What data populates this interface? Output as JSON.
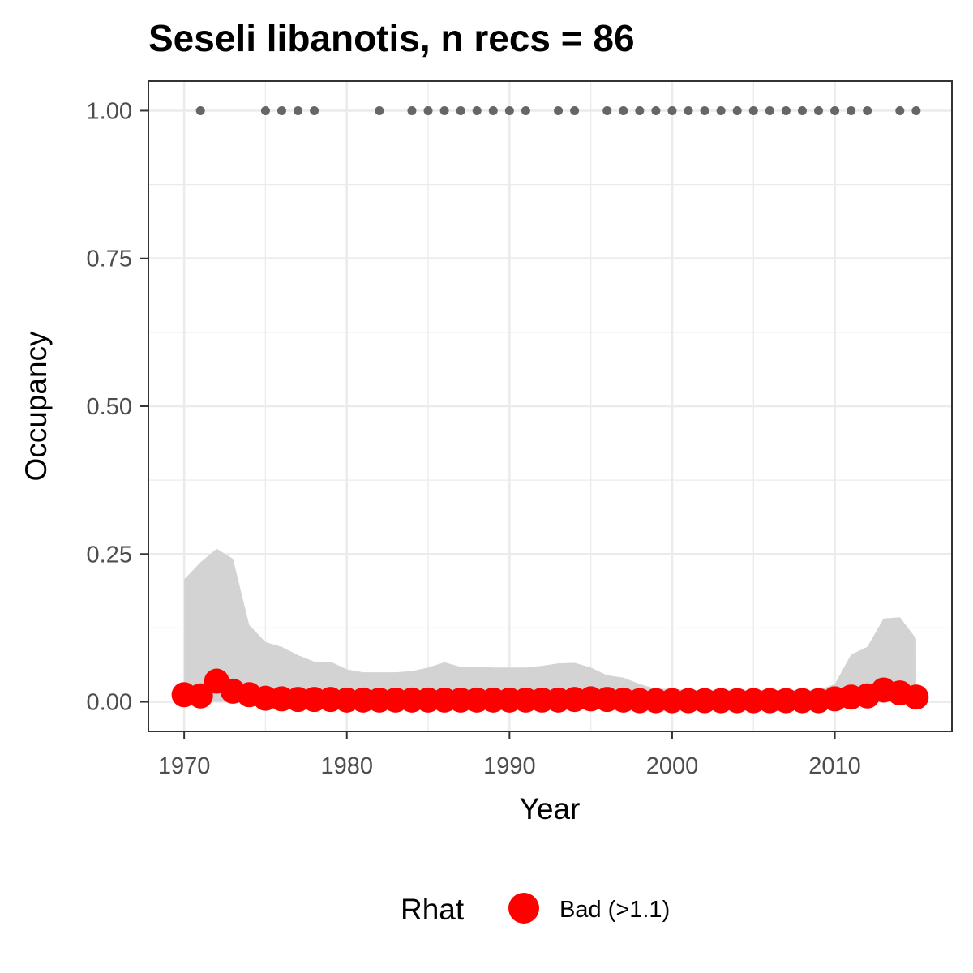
{
  "chart_data": {
    "type": "line",
    "title": "Seseli libanotis, n recs = 86",
    "xlabel": "Year",
    "ylabel": "Occupancy",
    "xlim": [
      1967.8,
      2017.2
    ],
    "ylim": [
      -0.05,
      1.05
    ],
    "xticks": [
      1970,
      1980,
      1990,
      2000,
      2010
    ],
    "yticks": [
      0.0,
      0.25,
      0.5,
      0.75,
      1.0
    ],
    "ytick_labels": [
      "0.00",
      "0.25",
      "0.50",
      "0.75",
      "1.00"
    ],
    "grid": true,
    "legend": {
      "title": "Rhat",
      "placement": "bottom",
      "entries": [
        {
          "label": "Bad (>1.1)",
          "color": "#ff0000"
        }
      ]
    },
    "colors": {
      "mean": "#ff0000",
      "ribbon": "#d3d3d3",
      "records": "#666666",
      "panel_border": "#333333",
      "grid": "#ebebeb"
    },
    "series": [
      {
        "name": "Bad (>1.1)",
        "kind": "mean",
        "x": [
          1970,
          1971,
          1972,
          1973,
          1974,
          1975,
          1976,
          1977,
          1978,
          1979,
          1980,
          1981,
          1982,
          1983,
          1984,
          1985,
          1986,
          1987,
          1988,
          1989,
          1990,
          1991,
          1992,
          1993,
          1994,
          1995,
          1996,
          1997,
          1998,
          1999,
          2000,
          2001,
          2002,
          2003,
          2004,
          2005,
          2006,
          2007,
          2008,
          2009,
          2010,
          2011,
          2012,
          2013,
          2014,
          2015
        ],
        "y": [
          0.012,
          0.01,
          0.035,
          0.018,
          0.012,
          0.006,
          0.005,
          0.004,
          0.004,
          0.004,
          0.003,
          0.003,
          0.003,
          0.003,
          0.003,
          0.003,
          0.003,
          0.003,
          0.003,
          0.003,
          0.003,
          0.003,
          0.003,
          0.003,
          0.004,
          0.005,
          0.004,
          0.003,
          0.002,
          0.002,
          0.002,
          0.002,
          0.002,
          0.002,
          0.002,
          0.002,
          0.002,
          0.002,
          0.002,
          0.002,
          0.005,
          0.008,
          0.01,
          0.02,
          0.015,
          0.008
        ]
      },
      {
        "kind": "ribbon",
        "x": [
          1970,
          1971,
          1972,
          1973,
          1974,
          1975,
          1976,
          1977,
          1978,
          1979,
          1980,
          1981,
          1982,
          1983,
          1984,
          1985,
          1986,
          1987,
          1988,
          1989,
          1990,
          1991,
          1992,
          1993,
          1994,
          1995,
          1996,
          1997,
          1998,
          1999,
          2000,
          2001,
          2002,
          2003,
          2004,
          2005,
          2006,
          2007,
          2008,
          2009,
          2010,
          2011,
          2012,
          2013,
          2014,
          2015
        ],
        "lower": [
          0,
          0,
          0,
          0,
          0,
          0,
          0,
          0,
          0,
          0,
          0,
          0,
          0,
          0,
          0,
          0,
          0,
          0,
          0,
          0,
          0,
          0,
          0,
          0,
          0,
          0,
          0,
          0,
          0,
          0,
          0,
          0,
          0,
          0,
          0,
          0,
          0,
          0,
          0,
          0,
          0,
          0,
          0,
          0,
          0,
          0
        ],
        "upper": [
          0.207,
          0.236,
          0.259,
          0.242,
          0.13,
          0.101,
          0.093,
          0.079,
          0.068,
          0.068,
          0.055,
          0.05,
          0.05,
          0.05,
          0.052,
          0.058,
          0.067,
          0.059,
          0.059,
          0.058,
          0.058,
          0.058,
          0.061,
          0.065,
          0.066,
          0.058,
          0.045,
          0.041,
          0.03,
          0.022,
          0.022,
          0.02,
          0.02,
          0.02,
          0.02,
          0.02,
          0.02,
          0.02,
          0.02,
          0.02,
          0.03,
          0.08,
          0.093,
          0.141,
          0.143,
          0.107
        ]
      },
      {
        "kind": "records",
        "x": [
          1971,
          1975,
          1976,
          1977,
          1978,
          1982,
          1984,
          1985,
          1986,
          1987,
          1988,
          1989,
          1990,
          1991,
          1993,
          1994,
          1996,
          1997,
          1998,
          1999,
          2000,
          2001,
          2002,
          2003,
          2004,
          2005,
          2006,
          2007,
          2008,
          2009,
          2010,
          2011,
          2012,
          2014,
          2015
        ],
        "y": [
          1,
          1,
          1,
          1,
          1,
          1,
          1,
          1,
          1,
          1,
          1,
          1,
          1,
          1,
          1,
          1,
          1,
          1,
          1,
          1,
          1,
          1,
          1,
          1,
          1,
          1,
          1,
          1,
          1,
          1,
          1,
          1,
          1,
          1,
          1
        ]
      }
    ]
  }
}
